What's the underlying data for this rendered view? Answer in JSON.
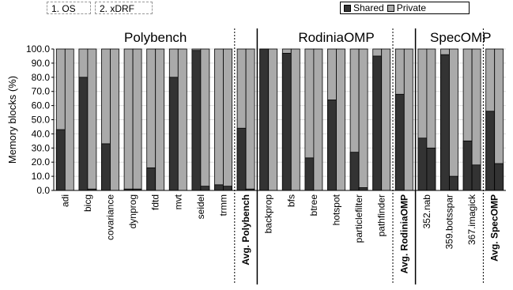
{
  "tags": {
    "os": "1. OS",
    "xdrf": "2. xDRF"
  },
  "legend": {
    "shared": "Shared",
    "private": "Private"
  },
  "colors": {
    "shared": "#333333",
    "private": "#aaaaaa",
    "grid": "#dddddd"
  },
  "chart_data": {
    "type": "bar",
    "stacked": true,
    "ylabel": "Memory blocks (%)",
    "ylim": [
      0,
      100
    ],
    "yticks": [
      "0.0",
      "10.0",
      "20.0",
      "30.0",
      "40.0",
      "50.0",
      "60.0",
      "70.0",
      "80.0",
      "90.0",
      "100.0"
    ],
    "legend_position": "top-right",
    "bars_per_category": [
      "1. OS",
      "2. xDRF"
    ],
    "groups": [
      {
        "name": "Polybench",
        "start": 0,
        "end": 8
      },
      {
        "name": "RodiniaOMP",
        "start": 9,
        "end": 15
      },
      {
        "name": "SpecOMP",
        "start": 16,
        "end": 19
      }
    ],
    "categories": [
      {
        "label": "adi",
        "os": 43,
        "xdrf": 0
      },
      {
        "label": "bicg",
        "os": 80,
        "xdrf": 1
      },
      {
        "label": "covariance",
        "os": 33,
        "xdrf": 0
      },
      {
        "label": "dynprog",
        "os": 1,
        "xdrf": 1
      },
      {
        "label": "fdtd",
        "os": 16,
        "xdrf": 0
      },
      {
        "label": "mvt",
        "os": 80,
        "xdrf": 0
      },
      {
        "label": "seidel",
        "os": 99,
        "xdrf": 3
      },
      {
        "label": "trmm",
        "os": 4,
        "xdrf": 3
      },
      {
        "label": "Avg. Polybench",
        "os": 44,
        "xdrf": 1,
        "bold": true
      },
      {
        "label": "backprop",
        "os": 100,
        "xdrf": 0
      },
      {
        "label": "bfs",
        "os": 97,
        "xdrf": 0
      },
      {
        "label": "btree",
        "os": 23,
        "xdrf": 0
      },
      {
        "label": "hotspot",
        "os": 64,
        "xdrf": 0
      },
      {
        "label": "particlefilter",
        "os": 27,
        "xdrf": 2
      },
      {
        "label": "pathfinder",
        "os": 95,
        "xdrf": 0
      },
      {
        "label": "Avg. RodiniaOMP",
        "os": 68,
        "xdrf": 0,
        "bold": true
      },
      {
        "label": "352.nab",
        "os": 37,
        "xdrf": 30
      },
      {
        "label": "359.botsspar",
        "os": 96,
        "xdrf": 10
      },
      {
        "label": "367.imagick",
        "os": 35,
        "xdrf": 18
      },
      {
        "label": "Avg. SpecOMP",
        "os": 56,
        "xdrf": 19,
        "bold": true
      }
    ]
  }
}
